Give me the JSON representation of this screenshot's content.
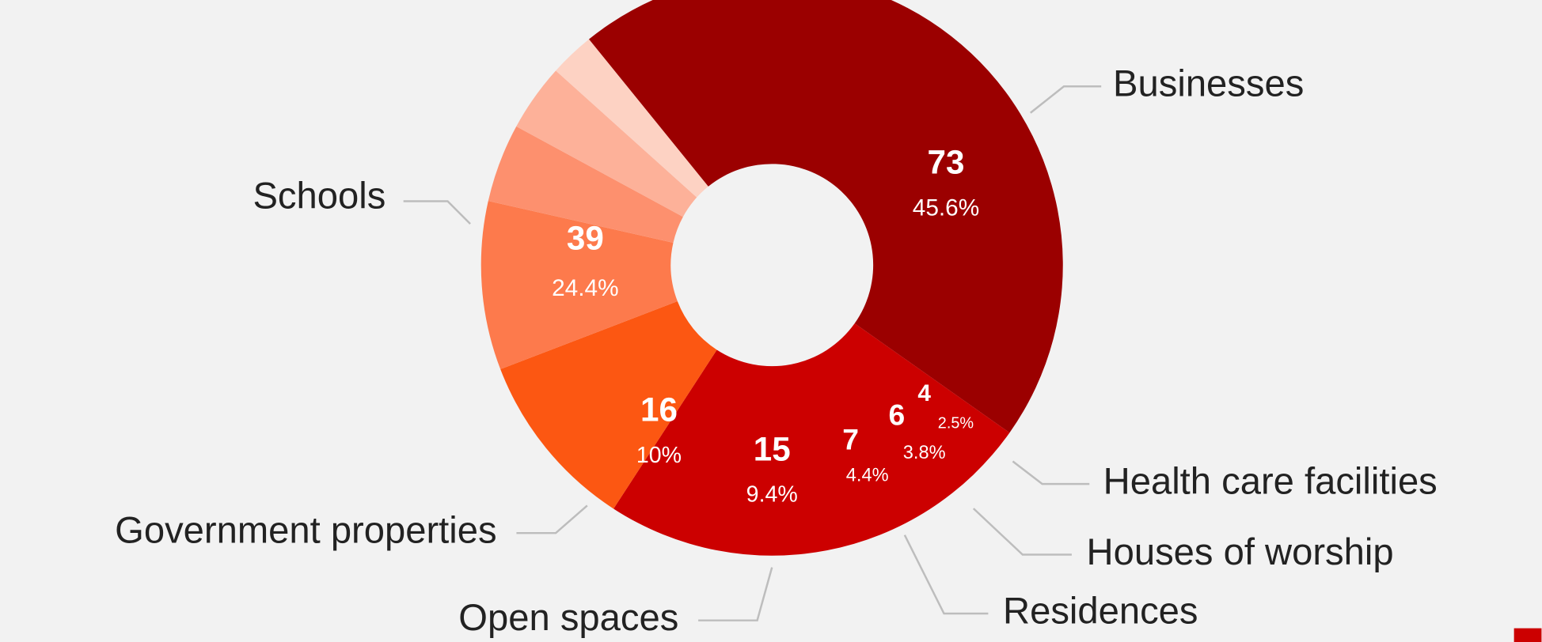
{
  "chart_data": {
    "type": "donut",
    "categories": [
      "Businesses",
      "Schools",
      "Government properties",
      "Open spaces",
      "Residences",
      "Houses of worship",
      "Health care facilities"
    ],
    "values": [
      73,
      39,
      16,
      15,
      7,
      6,
      4
    ],
    "percentages": [
      45.6,
      24.4,
      10,
      9.4,
      4.4,
      3.8,
      2.5
    ],
    "percentage_labels": [
      "45.6%",
      "24.4%",
      "10%",
      "9.4%",
      "4.4%",
      "3.8%",
      "2.5%"
    ],
    "colors": [
      "#9b0000",
      "#cc0000",
      "#fc5712",
      "#fd7a4c",
      "#fd906e",
      "#fdb199",
      "#fdd2c3"
    ]
  }
}
